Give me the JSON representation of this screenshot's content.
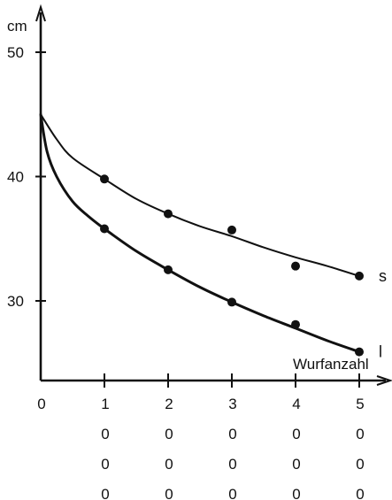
{
  "chart_data": {
    "type": "line",
    "title": "",
    "xlabel": "Wurfanzahl",
    "ylabel": "cm",
    "xlim": [
      0,
      5
    ],
    "ylim": [
      22,
      52
    ],
    "y_ticks": [
      30,
      40,
      50
    ],
    "x_tick_labels": [
      [
        "0"
      ],
      [
        "1",
        "0",
        "0",
        "0"
      ],
      [
        "2",
        "0",
        "0",
        "0"
      ],
      [
        "3",
        "0",
        "0",
        "0"
      ],
      [
        "4",
        "0",
        "0",
        "0"
      ],
      [
        "5",
        "0",
        "0",
        "0"
      ]
    ],
    "grid": false,
    "legend": "none",
    "color": "#111111",
    "series": [
      {
        "name": "s",
        "curve_x": [
          0,
          0.25,
          0.5,
          1,
          1.5,
          2,
          2.5,
          3,
          3.5,
          4,
          4.5,
          5
        ],
        "curve_y": [
          45,
          43,
          41.5,
          39.8,
          38.2,
          37,
          36,
          35.2,
          34.3,
          33.5,
          32.8,
          32
        ],
        "points": [
          {
            "x": 1,
            "y": 39.8
          },
          {
            "x": 2,
            "y": 37
          },
          {
            "x": 3,
            "y": 35.7
          },
          {
            "x": 4,
            "y": 32.8
          },
          {
            "x": 5,
            "y": 32
          }
        ]
      },
      {
        "name": "l",
        "curve_x": [
          0,
          0.1,
          0.25,
          0.5,
          0.75,
          1,
          1.5,
          2,
          2.5,
          3,
          3.5,
          4,
          4.5,
          5
        ],
        "curve_y": [
          45,
          42,
          40,
          38,
          36.8,
          35.8,
          34,
          32.5,
          31.1,
          29.9,
          28.8,
          27.8,
          26.8,
          25.9
        ],
        "points": [
          {
            "x": 1,
            "y": 35.8
          },
          {
            "x": 2,
            "y": 32.5
          },
          {
            "x": 3,
            "y": 29.9
          },
          {
            "x": 4,
            "y": 28.1
          },
          {
            "x": 5,
            "y": 25.9
          }
        ]
      }
    ]
  }
}
